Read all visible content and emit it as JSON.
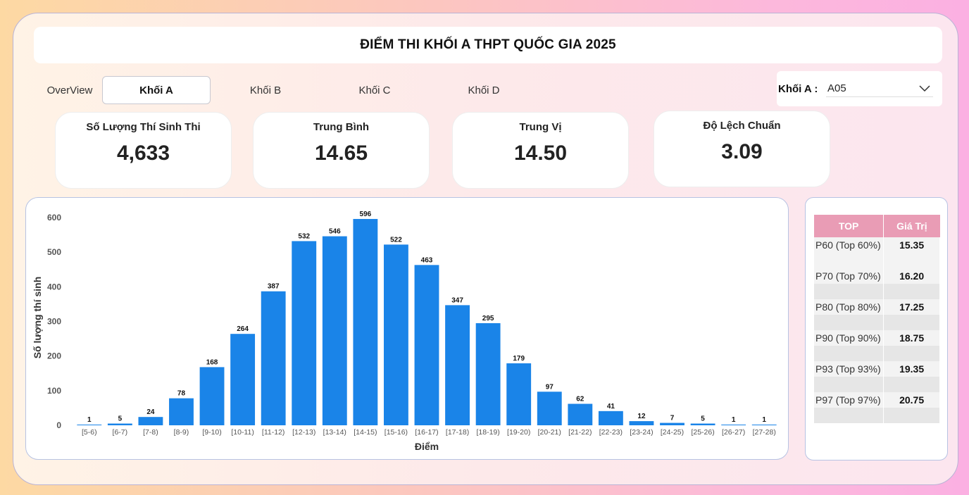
{
  "header": {
    "title": "ĐIỂM THI KHỐI A THPT QUỐC GIA 2025"
  },
  "tabs": [
    {
      "label": "OverView"
    },
    {
      "label": "Khối A",
      "active": true
    },
    {
      "label": "Khối B"
    },
    {
      "label": "Khối C"
    },
    {
      "label": "Khối D"
    }
  ],
  "filter": {
    "label": "Khối A :",
    "selected": "A05",
    "icon": "chevron-down-icon"
  },
  "kpis": [
    {
      "label": "Số Lượng Thí Sinh Thi",
      "value": "4,633"
    },
    {
      "label": "Trung Bình",
      "value": "14.65"
    },
    {
      "label": "Trung Vị",
      "value": "14.50"
    },
    {
      "label": "Độ Lệch Chuẩn",
      "value": "3.09"
    }
  ],
  "percentiles": {
    "headers": [
      "TOP",
      "Giá Trị"
    ],
    "rows": [
      {
        "label": "P60 (Top 60%)",
        "value": "15.35"
      },
      {
        "label": "P70 (Top 70%)",
        "value": "16.20"
      },
      {
        "label": "P80 (Top 80%)",
        "value": "17.25"
      },
      {
        "label": "P90 (Top 90%)",
        "value": "18.75"
      },
      {
        "label": "P93 (Top 93%)",
        "value": "19.35"
      },
      {
        "label": "P97 (Top 97%)",
        "value": "20.75"
      }
    ]
  },
  "colors": {
    "bar": "#1a84e8",
    "table_header": "#e99cb5"
  },
  "chart_data": {
    "type": "bar",
    "title": "",
    "xlabel": "Điểm",
    "ylabel": "Số lượng thí sinh",
    "ylim": [
      0,
      600
    ],
    "yticks": [
      0,
      100,
      200,
      300,
      400,
      500,
      600
    ],
    "categories": [
      "[5-6)",
      "[6-7)",
      "[7-8)",
      "[8-9)",
      "[9-10)",
      "[10-11)",
      "[11-12)",
      "[12-13)",
      "[13-14)",
      "[14-15)",
      "[15-16)",
      "[16-17)",
      "[17-18)",
      "[18-19)",
      "[19-20)",
      "[20-21)",
      "[21-22)",
      "[22-23)",
      "[23-24)",
      "[24-25)",
      "[25-26)",
      "[26-27)",
      "[27-28)"
    ],
    "values": [
      1,
      5,
      24,
      78,
      168,
      264,
      387,
      532,
      546,
      596,
      522,
      463,
      347,
      295,
      179,
      97,
      62,
      41,
      12,
      7,
      5,
      1,
      1
    ],
    "grid": false,
    "data_labels": true
  }
}
